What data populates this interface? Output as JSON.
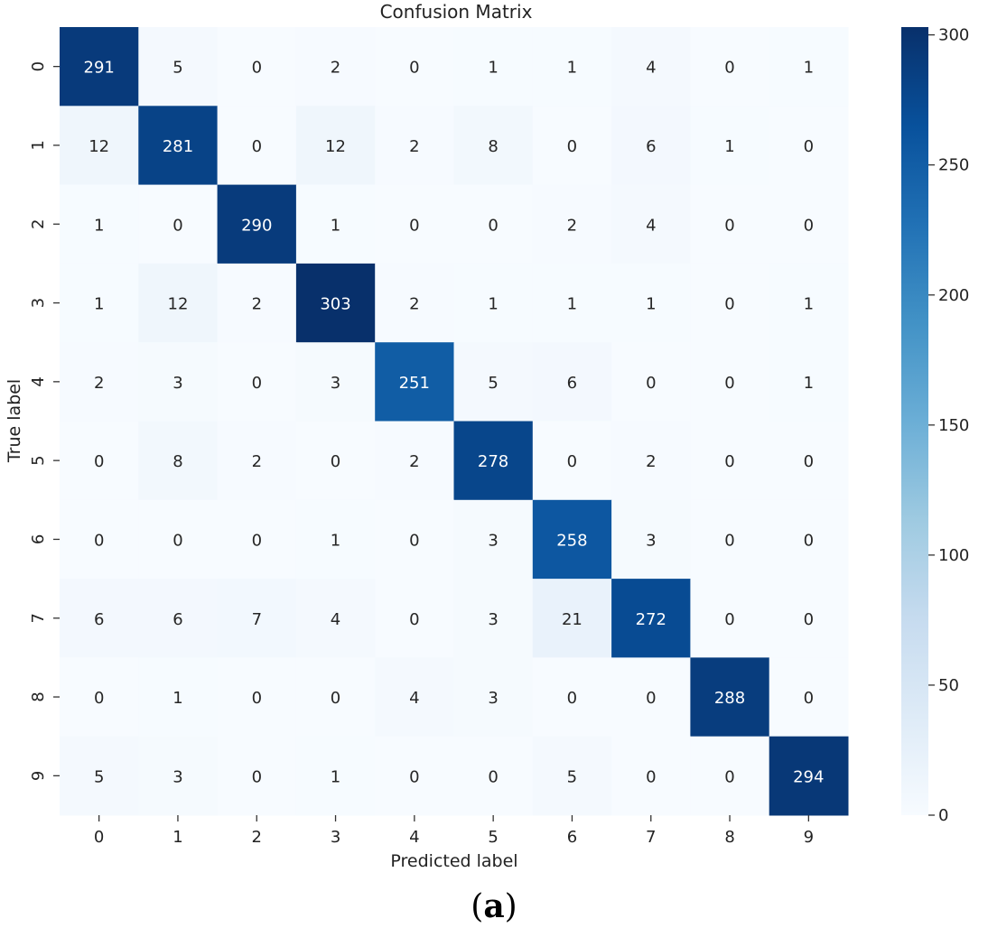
{
  "caption": {
    "paren_open": "(",
    "letter": "a",
    "paren_close": ")"
  },
  "chart_data": {
    "type": "heatmap",
    "title": "Confusion Matrix",
    "xlabel": "Predicted label",
    "ylabel": "True label",
    "x_categories": [
      "0",
      "1",
      "2",
      "3",
      "4",
      "5",
      "6",
      "7",
      "8",
      "9"
    ],
    "y_categories": [
      "0",
      "1",
      "2",
      "3",
      "4",
      "5",
      "6",
      "7",
      "8",
      "9"
    ],
    "values": [
      [
        291,
        5,
        0,
        2,
        0,
        1,
        1,
        4,
        0,
        1
      ],
      [
        12,
        281,
        0,
        12,
        2,
        8,
        0,
        6,
        1,
        0
      ],
      [
        1,
        0,
        290,
        1,
        0,
        0,
        2,
        4,
        0,
        0
      ],
      [
        1,
        12,
        2,
        303,
        2,
        1,
        1,
        1,
        0,
        1
      ],
      [
        2,
        3,
        0,
        3,
        251,
        5,
        6,
        0,
        0,
        1
      ],
      [
        0,
        8,
        2,
        0,
        2,
        278,
        0,
        2,
        0,
        0
      ],
      [
        0,
        0,
        0,
        1,
        0,
        3,
        258,
        3,
        0,
        0
      ],
      [
        6,
        6,
        7,
        4,
        0,
        3,
        21,
        272,
        0,
        0
      ],
      [
        0,
        1,
        0,
        0,
        4,
        3,
        0,
        0,
        288,
        0
      ],
      [
        5,
        3,
        0,
        1,
        0,
        0,
        5,
        0,
        0,
        294
      ]
    ],
    "colorbar": {
      "min": 0,
      "max": 303,
      "ticks": [
        0,
        50,
        100,
        150,
        200,
        250,
        300
      ]
    },
    "colormap": "Blues",
    "colors": [
      "#f7fbff",
      "#deebf7",
      "#c6dbef",
      "#9ecae1",
      "#6baed6",
      "#4292c6",
      "#2171b5",
      "#08519c",
      "#08306b"
    ]
  }
}
